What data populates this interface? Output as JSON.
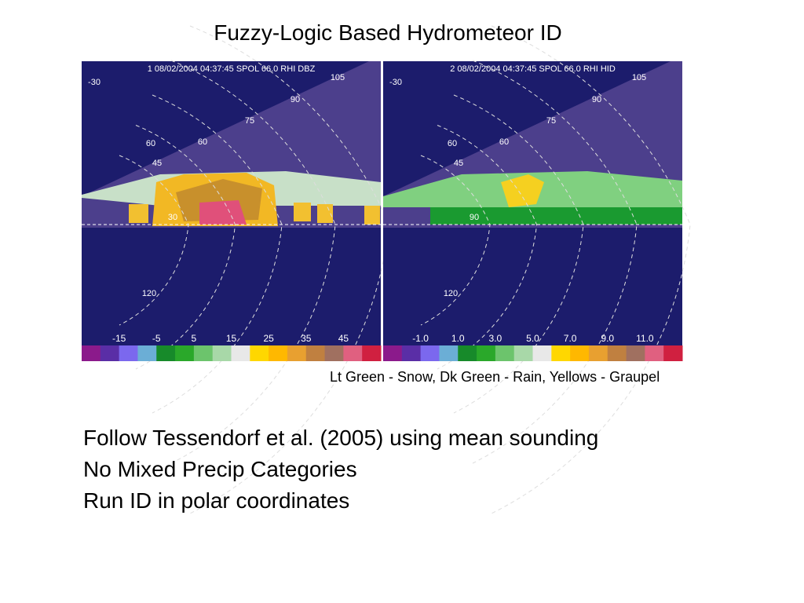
{
  "title": "Fuzzy-Logic Based Hydrometeor ID",
  "panels": [
    {
      "header": "1 08/02/2004 04:37:45 SPOL 66.0 RHI DBZ",
      "range_labels": [
        "-30",
        "105",
        "90",
        "75",
        "60",
        "60",
        "45",
        "30",
        "120"
      ],
      "colorbar_labels": [
        "-15",
        "-5",
        "5",
        "15",
        "25",
        "35",
        "45"
      ]
    },
    {
      "header": "2 08/02/2004 04:37:45 SPOL 66.0 RHI HID",
      "range_labels": [
        "-30",
        "105",
        "90",
        "75",
        "60",
        "60",
        "45",
        "90",
        "120"
      ],
      "colorbar_labels": [
        "-1.0",
        "1.0",
        "3.0",
        "5.0",
        "7.0",
        "9.0",
        "11.0"
      ]
    }
  ],
  "caption": "Lt Green - Snow, Dk Green - Rain, Yellows - Graupel",
  "bullets": [
    "Follow Tessendorf et al. (2005) using mean sounding",
    "No Mixed Precip Categories",
    "Run ID in polar coordinates"
  ]
}
